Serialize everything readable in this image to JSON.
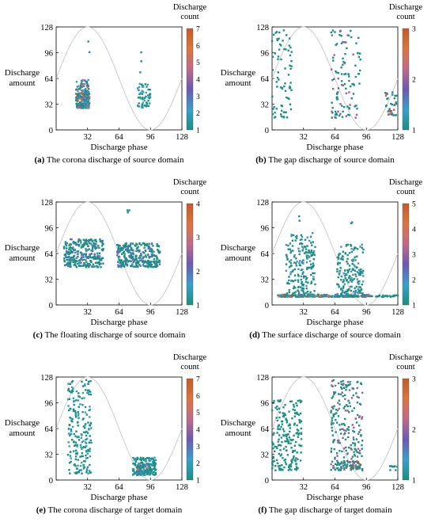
{
  "figure": {
    "common": {
      "xlabel": "Discharge phase",
      "ylabel": "Discharge amount",
      "colorbar_label": "Discharge count",
      "xlim": [
        0,
        128
      ],
      "ylim": [
        0,
        128
      ],
      "xticks": [
        32,
        64,
        96,
        128
      ],
      "yticks": [
        0,
        32,
        64,
        96,
        128
      ],
      "grid": false,
      "reference_curve": "sinusoid, one period over 0–128 phase, peak at 32, trough at 96",
      "colormap": [
        "#1b8f82",
        "#3aa0c8",
        "#6a5bb0",
        "#c06a8a",
        "#d8773f",
        "#c25a28"
      ],
      "curve_color": "#c8c8c8"
    },
    "panels": [
      {
        "id": "a",
        "letter": "(a)",
        "caption": "The corona discharge of source domain",
        "cbar_max": 7,
        "cbar_ticks": [
          1,
          2,
          3,
          4,
          5,
          6,
          7
        ],
        "clusters": [
          {
            "x": [
              20,
              34
            ],
            "y": [
              27,
              62
            ],
            "n": 160,
            "cmax": 5
          },
          {
            "x": [
              21,
              34
            ],
            "y": [
              27,
              45
            ],
            "n": 60,
            "cmax": 7
          },
          {
            "x": [
              31,
              34
            ],
            "y": [
              63,
              110
            ],
            "n": 2,
            "cmax": 1
          },
          {
            "x": [
              83,
              96
            ],
            "y": [
              27,
              58
            ],
            "n": 55,
            "cmax": 2
          },
          {
            "x": [
              85,
              87
            ],
            "y": [
              66,
              100
            ],
            "n": 3,
            "cmax": 1
          }
        ]
      },
      {
        "id": "b",
        "letter": "(b)",
        "caption": "The gap discharge of source domain",
        "cbar_max": 3,
        "cbar_ticks": [
          1,
          2,
          3
        ],
        "clusters": [
          {
            "x": [
              0,
              20
            ],
            "y": [
              15,
              125
            ],
            "n": 75,
            "cmax": 1
          },
          {
            "x": [
              60,
              90
            ],
            "y": [
              15,
              125
            ],
            "n": 110,
            "cmax": 2
          },
          {
            "x": [
              115,
              127
            ],
            "y": [
              18,
              48
            ],
            "n": 35,
            "cmax": 3
          }
        ]
      },
      {
        "id": "c",
        "letter": "(c)",
        "caption": "The floating discharge of source domain",
        "cbar_max": 4,
        "cbar_ticks": [
          1,
          2,
          3,
          4
        ],
        "clusters": [
          {
            "x": [
              8,
              48
            ],
            "y": [
              47,
              82
            ],
            "n": 300,
            "cmax": 2
          },
          {
            "x": [
              62,
              106
            ],
            "y": [
              47,
              77
            ],
            "n": 300,
            "cmax": 2
          },
          {
            "x": [
              72,
              75
            ],
            "y": [
              115,
              128
            ],
            "n": 3,
            "cmax": 1
          }
        ]
      },
      {
        "id": "d",
        "letter": "(d)",
        "caption": "The surface discharge of source domain",
        "cbar_max": 5,
        "cbar_ticks": [
          1,
          2,
          3,
          4,
          5
        ],
        "clusters": [
          {
            "x": [
              5,
              62
            ],
            "y": [
              10,
              13
            ],
            "n": 140,
            "cmax": 5
          },
          {
            "x": [
              14,
              44
            ],
            "y": [
              13,
              90
            ],
            "n": 190,
            "cmax": 2
          },
          {
            "x": [
              26,
              28
            ],
            "y": [
              100,
              128
            ],
            "n": 2,
            "cmax": 1
          },
          {
            "x": [
              60,
              100
            ],
            "y": [
              10,
              13
            ],
            "n": 110,
            "cmax": 4
          },
          {
            "x": [
              66,
              93
            ],
            "y": [
              13,
              75
            ],
            "n": 170,
            "cmax": 2
          },
          {
            "x": [
              80,
              82
            ],
            "y": [
              95,
              103
            ],
            "n": 2,
            "cmax": 1
          },
          {
            "x": [
              100,
              128
            ],
            "y": [
              10,
              12
            ],
            "n": 28,
            "cmax": 1
          }
        ]
      },
      {
        "id": "e",
        "letter": "(e)",
        "caption": "The corona discharge of target domain",
        "cbar_max": 7,
        "cbar_ticks": [
          1,
          2,
          3,
          4,
          5,
          6,
          7
        ],
        "clusters": [
          {
            "x": [
              12,
              36
            ],
            "y": [
              8,
              125
            ],
            "n": 220,
            "cmax": 2
          },
          {
            "x": [
              78,
              102
            ],
            "y": [
              6,
              28
            ],
            "n": 180,
            "cmax": 2
          },
          {
            "x": [
              82,
              98
            ],
            "y": [
              8,
              20
            ],
            "n": 40,
            "cmax": 5
          }
        ]
      },
      {
        "id": "f",
        "letter": "(f)",
        "caption": "The gap discharge of target domain",
        "cbar_max": 3,
        "cbar_ticks": [
          1,
          2,
          3
        ],
        "clusters": [
          {
            "x": [
              0,
              30
            ],
            "y": [
              12,
              100
            ],
            "n": 200,
            "cmax": 1
          },
          {
            "x": [
              60,
              92
            ],
            "y": [
              12,
              125
            ],
            "n": 230,
            "cmax": 2
          },
          {
            "x": [
              65,
              90
            ],
            "y": [
              14,
              24
            ],
            "n": 40,
            "cmax": 3
          },
          {
            "x": [
              120,
              128
            ],
            "y": [
              12,
              18
            ],
            "n": 10,
            "cmax": 1
          }
        ]
      }
    ]
  },
  "chart_data": [
    {
      "type": "scatter",
      "title": "(a) The corona discharge of source domain",
      "xlabel": "Discharge phase",
      "ylabel": "Discharge amount",
      "xlim": [
        0,
        128
      ],
      "ylim": [
        0,
        128
      ],
      "colorbar": {
        "label": "Discharge count",
        "range": [
          1,
          7
        ]
      },
      "series": [
        {
          "x_range": [
            20,
            34
          ],
          "y_range": [
            27,
            62
          ],
          "count_max": 7
        },
        {
          "x_range": [
            83,
            96
          ],
          "y_range": [
            27,
            58
          ],
          "count_max": 2
        }
      ]
    },
    {
      "type": "scatter",
      "title": "(b) The gap discharge of source domain",
      "xlabel": "Discharge phase",
      "ylabel": "Discharge amount",
      "xlim": [
        0,
        128
      ],
      "ylim": [
        0,
        128
      ],
      "colorbar": {
        "label": "Discharge count",
        "range": [
          1,
          3
        ]
      },
      "series": [
        {
          "x_range": [
            0,
            20
          ],
          "y_range": [
            15,
            125
          ],
          "count_max": 1
        },
        {
          "x_range": [
            60,
            90
          ],
          "y_range": [
            15,
            125
          ],
          "count_max": 2
        },
        {
          "x_range": [
            115,
            127
          ],
          "y_range": [
            18,
            48
          ],
          "count_max": 3
        }
      ]
    },
    {
      "type": "scatter",
      "title": "(c) The floating discharge of source domain",
      "xlabel": "Discharge phase",
      "ylabel": "Discharge amount",
      "xlim": [
        0,
        128
      ],
      "ylim": [
        0,
        128
      ],
      "colorbar": {
        "label": "Discharge count",
        "range": [
          1,
          4
        ]
      },
      "series": [
        {
          "x_range": [
            8,
            48
          ],
          "y_range": [
            47,
            82
          ],
          "count_max": 2
        },
        {
          "x_range": [
            62,
            106
          ],
          "y_range": [
            47,
            77
          ],
          "count_max": 2
        }
      ]
    },
    {
      "type": "scatter",
      "title": "(d) The surface discharge of source domain",
      "xlabel": "Discharge phase",
      "ylabel": "Discharge amount",
      "xlim": [
        0,
        128
      ],
      "ylim": [
        0,
        128
      ],
      "colorbar": {
        "label": "Discharge count",
        "range": [
          1,
          5
        ]
      },
      "series": [
        {
          "x_range": [
            5,
            62
          ],
          "y_range": [
            10,
            90
          ],
          "count_max": 5
        },
        {
          "x_range": [
            60,
            128
          ],
          "y_range": [
            10,
            103
          ],
          "count_max": 4
        }
      ]
    },
    {
      "type": "scatter",
      "title": "(e) The corona discharge of target domain",
      "xlabel": "Discharge phase",
      "ylabel": "Discharge amount",
      "xlim": [
        0,
        128
      ],
      "ylim": [
        0,
        128
      ],
      "colorbar": {
        "label": "Discharge count",
        "range": [
          1,
          7
        ]
      },
      "series": [
        {
          "x_range": [
            12,
            36
          ],
          "y_range": [
            8,
            125
          ],
          "count_max": 2
        },
        {
          "x_range": [
            78,
            102
          ],
          "y_range": [
            6,
            28
          ],
          "count_max": 5
        }
      ]
    },
    {
      "type": "scatter",
      "title": "(f) The gap discharge of target domain",
      "xlabel": "Discharge phase",
      "ylabel": "Discharge amount",
      "xlim": [
        0,
        128
      ],
      "ylim": [
        0,
        128
      ],
      "colorbar": {
        "label": "Discharge count",
        "range": [
          1,
          3
        ]
      },
      "series": [
        {
          "x_range": [
            0,
            30
          ],
          "y_range": [
            12,
            100
          ],
          "count_max": 1
        },
        {
          "x_range": [
            60,
            92
          ],
          "y_range": [
            12,
            125
          ],
          "count_max": 3
        },
        {
          "x_range": [
            120,
            128
          ],
          "y_range": [
            12,
            18
          ],
          "count_max": 1
        }
      ]
    }
  ]
}
